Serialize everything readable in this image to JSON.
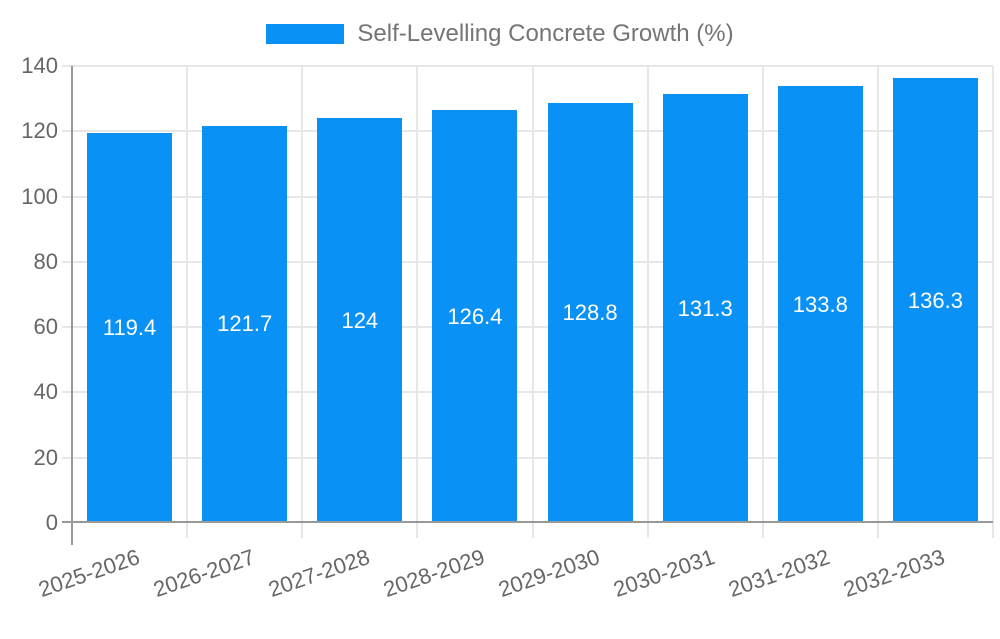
{
  "legend": {
    "label": "Self-Levelling Concrete Growth (%)"
  },
  "chart_data": {
    "type": "bar",
    "title": "Self-Levelling Concrete Growth (%)",
    "categories": [
      "2025-2026",
      "2026-2027",
      "2027-2028",
      "2028-2029",
      "2029-2030",
      "2030-2031",
      "2031-2032",
      "2032-2033"
    ],
    "values": [
      119.4,
      121.7,
      124,
      126.4,
      128.8,
      131.3,
      133.8,
      136.3
    ],
    "bar_labels": [
      "119.4",
      "121.7",
      "124",
      "126.4",
      "128.8",
      "131.3",
      "133.8",
      "136.3"
    ],
    "xlabel": "",
    "ylabel": "",
    "ylim": [
      0,
      140
    ],
    "yticks": [
      0,
      20,
      40,
      60,
      80,
      100,
      120,
      140
    ],
    "grid": true,
    "legend_position": "top",
    "x_label_rotation_deg": -19,
    "colors": {
      "bar": "#0a91f5",
      "gridline": "#e7e7e7",
      "axis_line": "#999999",
      "axis_text": "#666666",
      "legend_text": "#757575",
      "value_label": "#ffffff",
      "background": "#ffffff"
    }
  }
}
